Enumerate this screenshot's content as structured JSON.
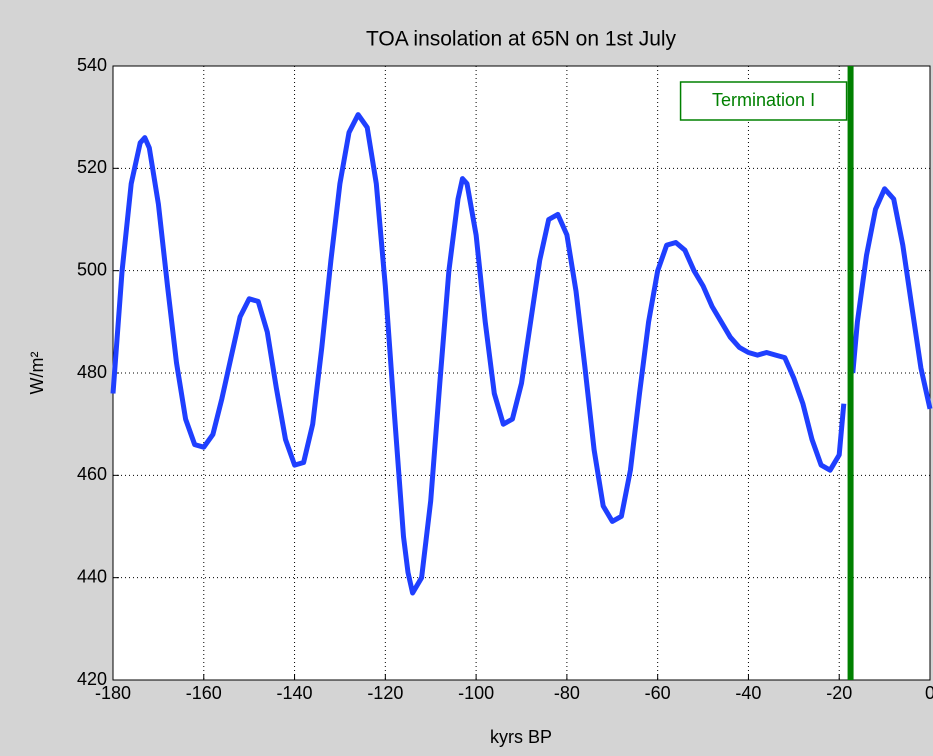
{
  "chart_data": {
    "type": "line",
    "title": "TOA insolation at 65N on 1st July",
    "xlabel": "kyrs BP",
    "ylabel": "W/m²",
    "x": [
      -180,
      -178,
      -176,
      -174,
      -173,
      -172,
      -170,
      -168,
      -166,
      -164,
      -162,
      -160,
      -158,
      -156,
      -154,
      -152,
      -150,
      -148,
      -146,
      -144,
      -142,
      -140,
      -138,
      -136,
      -134,
      -132,
      -130,
      -128,
      -126,
      -124,
      -122,
      -120,
      -118,
      -116,
      -115,
      -114,
      -112,
      -110,
      -108,
      -106,
      -104,
      -103,
      -102,
      -100,
      -98,
      -96,
      -94,
      -92,
      -90,
      -88,
      -86,
      -84,
      -82,
      -80,
      -78,
      -76,
      -74,
      -72,
      -70,
      -68,
      -66,
      -64,
      -62,
      -60,
      -58,
      -56,
      -54,
      -52,
      -50,
      -48,
      -46,
      -44,
      -42,
      -40,
      -38,
      -36,
      -34,
      -32,
      -30,
      -28,
      -26,
      -24,
      -22,
      -20,
      -19,
      -18,
      -17,
      -16,
      -14,
      -12,
      -10,
      -8,
      -6,
      -4,
      -2,
      0
    ],
    "series": [
      {
        "color": "#1f3fff",
        "values": [
          476,
          500,
          517,
          525,
          526,
          524,
          513,
          497,
          482,
          471,
          466,
          465.5,
          468,
          475,
          483,
          491,
          494.5,
          494,
          488,
          477,
          467,
          462,
          462.5,
          470,
          485,
          502,
          517,
          527,
          530.5,
          528,
          517,
          497,
          472,
          448,
          441,
          437,
          440,
          455,
          478,
          500,
          514,
          518,
          517,
          507,
          490,
          476,
          470,
          471,
          478,
          490,
          502,
          510,
          511,
          507,
          496,
          481,
          465,
          454,
          451,
          452,
          461,
          476,
          490,
          500,
          505,
          505.5,
          504,
          500,
          497,
          493,
          490,
          487,
          485,
          484,
          483.5,
          484,
          483.5,
          483,
          479,
          474,
          467,
          462,
          461,
          464,
          474,
          null,
          480,
          490,
          503,
          512,
          516,
          514,
          505,
          493,
          481,
          473
        ]
      }
    ],
    "xlim": [
      -180,
      0
    ],
    "ylim": [
      420,
      540
    ],
    "xticks": [
      -180,
      -160,
      -140,
      -120,
      -100,
      -80,
      -60,
      -40,
      -20,
      0
    ],
    "yticks": [
      420,
      440,
      460,
      480,
      500,
      520,
      540
    ],
    "grid": true,
    "vline": {
      "x": -17.5,
      "color": "#008000",
      "label": "Termination I"
    }
  }
}
